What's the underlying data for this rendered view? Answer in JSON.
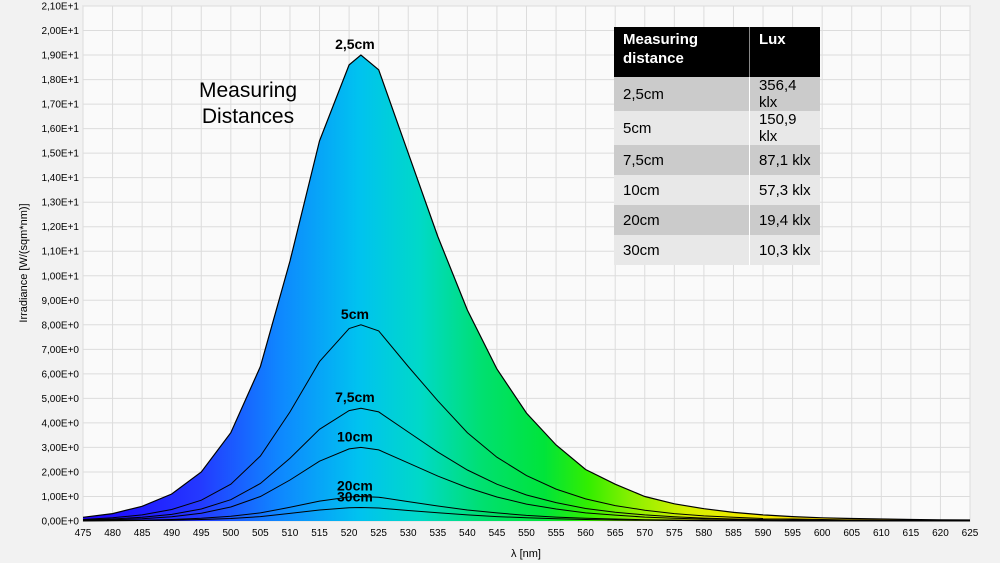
{
  "annotation": {
    "title_line1": "Measuring",
    "title_line2": "Distances"
  },
  "table": {
    "headers": [
      "Measuring distance",
      "Lux"
    ],
    "rows": [
      [
        "2,5cm",
        "356,4 klx"
      ],
      [
        "5cm",
        "150,9 klx"
      ],
      [
        "7,5cm",
        "87,1 klx"
      ],
      [
        "10cm",
        "57,3 klx"
      ],
      [
        "20cm",
        "19,4 klx"
      ],
      [
        "30cm",
        "10,3 klx"
      ]
    ]
  },
  "chart_data": {
    "type": "area",
    "xlabel": "λ [nm]",
    "ylabel": "Irradiance [W/(sqm*nm)]",
    "xlim": [
      475,
      625
    ],
    "ylim": [
      0,
      21
    ],
    "x_ticks": [
      "475",
      "480",
      "485",
      "490",
      "495",
      "500",
      "505",
      "510",
      "515",
      "520",
      "525",
      "530",
      "535",
      "540",
      "545",
      "550",
      "555",
      "560",
      "565",
      "570",
      "575",
      "580",
      "585",
      "590",
      "595",
      "600",
      "605",
      "610",
      "615",
      "620",
      "625"
    ],
    "y_ticks": [
      "0,00E+0",
      "1,00E+0",
      "2,00E+0",
      "3,00E+0",
      "4,00E+0",
      "5,00E+0",
      "6,00E+0",
      "7,00E+0",
      "8,00E+0",
      "9,00E+0",
      "1,00E+1",
      "1,10E+1",
      "1,20E+1",
      "1,30E+1",
      "1,40E+1",
      "1,50E+1",
      "1,60E+1",
      "1,70E+1",
      "1,80E+1",
      "1,90E+1",
      "2,00E+1",
      "2,10E+1"
    ],
    "grid": true,
    "fill": "spectral-gradient",
    "x": [
      475,
      480,
      485,
      490,
      495,
      500,
      505,
      510,
      515,
      520,
      522,
      525,
      530,
      535,
      540,
      545,
      550,
      555,
      560,
      565,
      570,
      575,
      580,
      585,
      590,
      595,
      600,
      605,
      610,
      615,
      620,
      625
    ],
    "series": [
      {
        "name": "2,5cm",
        "peak": 19.0,
        "values": [
          0.15,
          0.3,
          0.6,
          1.1,
          2.0,
          3.6,
          6.3,
          10.6,
          15.5,
          18.6,
          19.0,
          18.4,
          15.0,
          11.6,
          8.6,
          6.2,
          4.4,
          3.1,
          2.1,
          1.5,
          1.0,
          0.7,
          0.5,
          0.35,
          0.25,
          0.18,
          0.13,
          0.1,
          0.08,
          0.06,
          0.05,
          0.04
        ]
      },
      {
        "name": "5cm",
        "peak": 8.0,
        "values": [
          0.06,
          0.13,
          0.25,
          0.47,
          0.85,
          1.5,
          2.65,
          4.45,
          6.5,
          7.85,
          8.0,
          7.75,
          6.3,
          4.9,
          3.6,
          2.6,
          1.85,
          1.3,
          0.9,
          0.63,
          0.44,
          0.3,
          0.21,
          0.15,
          0.1,
          0.08,
          0.06,
          0.04,
          0.03,
          0.03,
          0.02,
          0.02
        ]
      },
      {
        "name": "7,5cm",
        "peak": 4.6,
        "values": [
          0.04,
          0.08,
          0.15,
          0.27,
          0.49,
          0.87,
          1.53,
          2.56,
          3.74,
          4.5,
          4.6,
          4.45,
          3.63,
          2.81,
          2.08,
          1.5,
          1.06,
          0.75,
          0.51,
          0.36,
          0.25,
          0.17,
          0.12,
          0.08,
          0.06,
          0.04,
          0.03,
          0.02,
          0.02,
          0.01,
          0.01,
          0.01
        ]
      },
      {
        "name": "10cm",
        "peak": 3.0,
        "values": [
          0.02,
          0.05,
          0.09,
          0.17,
          0.32,
          0.57,
          1.0,
          1.67,
          2.44,
          2.94,
          3.0,
          2.9,
          2.37,
          1.83,
          1.36,
          0.98,
          0.69,
          0.49,
          0.33,
          0.24,
          0.16,
          0.11,
          0.08,
          0.06,
          0.04,
          0.03,
          0.02,
          0.02,
          0.01,
          0.01,
          0.01,
          0.01
        ]
      },
      {
        "name": "20cm",
        "peak": 1.0,
        "values": [
          0.01,
          0.02,
          0.03,
          0.06,
          0.11,
          0.19,
          0.33,
          0.56,
          0.81,
          0.98,
          1.0,
          0.97,
          0.79,
          0.61,
          0.45,
          0.33,
          0.23,
          0.16,
          0.11,
          0.08,
          0.05,
          0.04,
          0.03,
          0.02,
          0.01,
          0.01,
          0.01,
          0.01,
          0.0,
          0.0,
          0.0,
          0.0
        ]
      },
      {
        "name": "30cm",
        "peak": 0.55,
        "values": [
          0.0,
          0.01,
          0.02,
          0.03,
          0.06,
          0.1,
          0.18,
          0.31,
          0.45,
          0.54,
          0.55,
          0.53,
          0.43,
          0.34,
          0.25,
          0.18,
          0.13,
          0.09,
          0.06,
          0.04,
          0.03,
          0.02,
          0.01,
          0.01,
          0.01,
          0.0,
          0.0,
          0.0,
          0.0,
          0.0,
          0.0,
          0.0
        ]
      }
    ]
  }
}
